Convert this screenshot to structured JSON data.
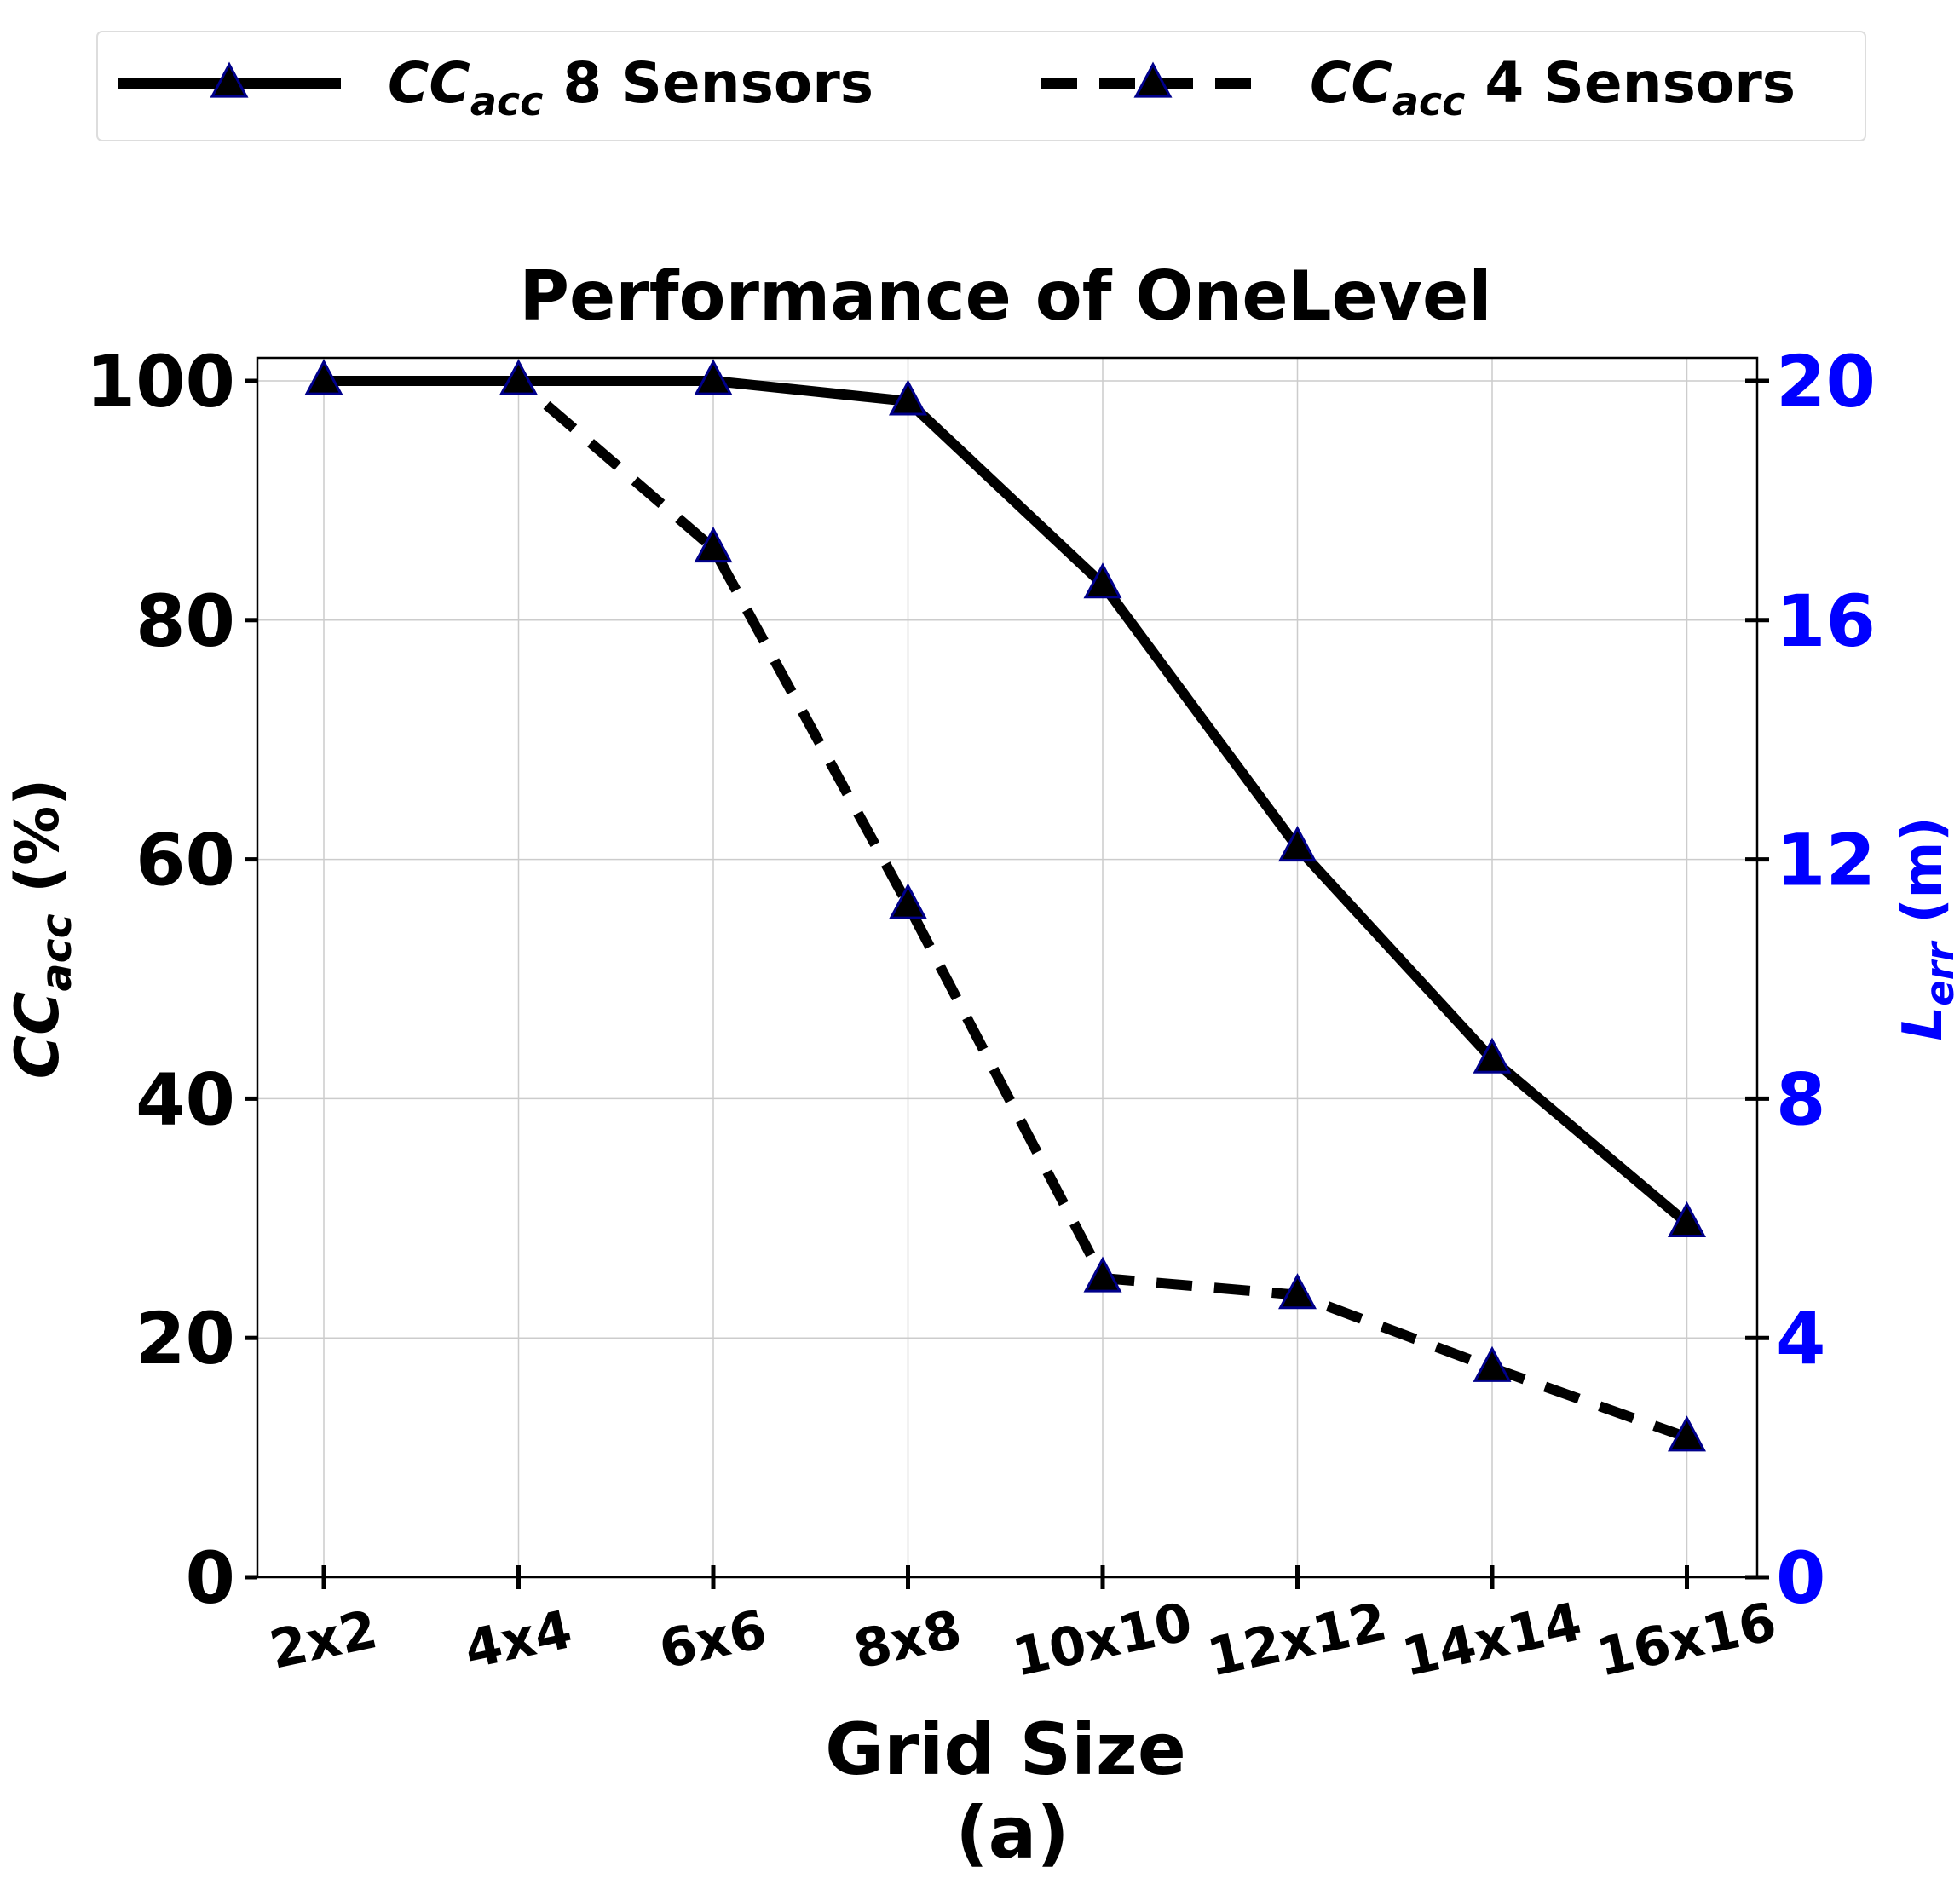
{
  "chart_data": {
    "type": "line",
    "title": "Performance of OneLevel",
    "xlabel": "Grid Size",
    "subcaption": "(a)",
    "ylabel": {
      "base": "CC",
      "sub": "acc",
      "suffix": " (%)"
    },
    "y2label": {
      "base": "L",
      "sub": "err",
      "suffix": " (m)"
    },
    "categories": [
      "2x2",
      "4x4",
      "6x6",
      "8x8",
      "10x10",
      "12x12",
      "14x14",
      "16x16"
    ],
    "ylim": [
      0,
      100
    ],
    "yticks": [
      "0",
      "20",
      "40",
      "60",
      "80",
      "100"
    ],
    "y2lim": [
      0,
      20
    ],
    "y2ticks": [
      "0",
      "4",
      "8",
      "12",
      "16",
      "20"
    ],
    "grid": true,
    "legend_position": "top",
    "series": [
      {
        "name": "CCacc 8 Sensors",
        "legend": {
          "base": "CC",
          "sub": "acc",
          "suffix": " 8 Sensors"
        },
        "style": "solid",
        "marker": "triangle",
        "values": [
          100,
          100,
          100,
          98.3,
          83,
          61,
          43.3,
          29.6
        ]
      },
      {
        "name": "CCacc 4 Sensors",
        "legend": {
          "base": "CC",
          "sub": "acc",
          "suffix": " 4 Sensors"
        },
        "style": "dashed",
        "marker": "triangle",
        "values": [
          100,
          100,
          86,
          56.2,
          25,
          23.6,
          17.5,
          11.7
        ]
      }
    ],
    "colors": {
      "line": "#000000",
      "marker_edge": "#00008b",
      "right_axis": "#0000ff",
      "grid": "#cccccc"
    }
  }
}
